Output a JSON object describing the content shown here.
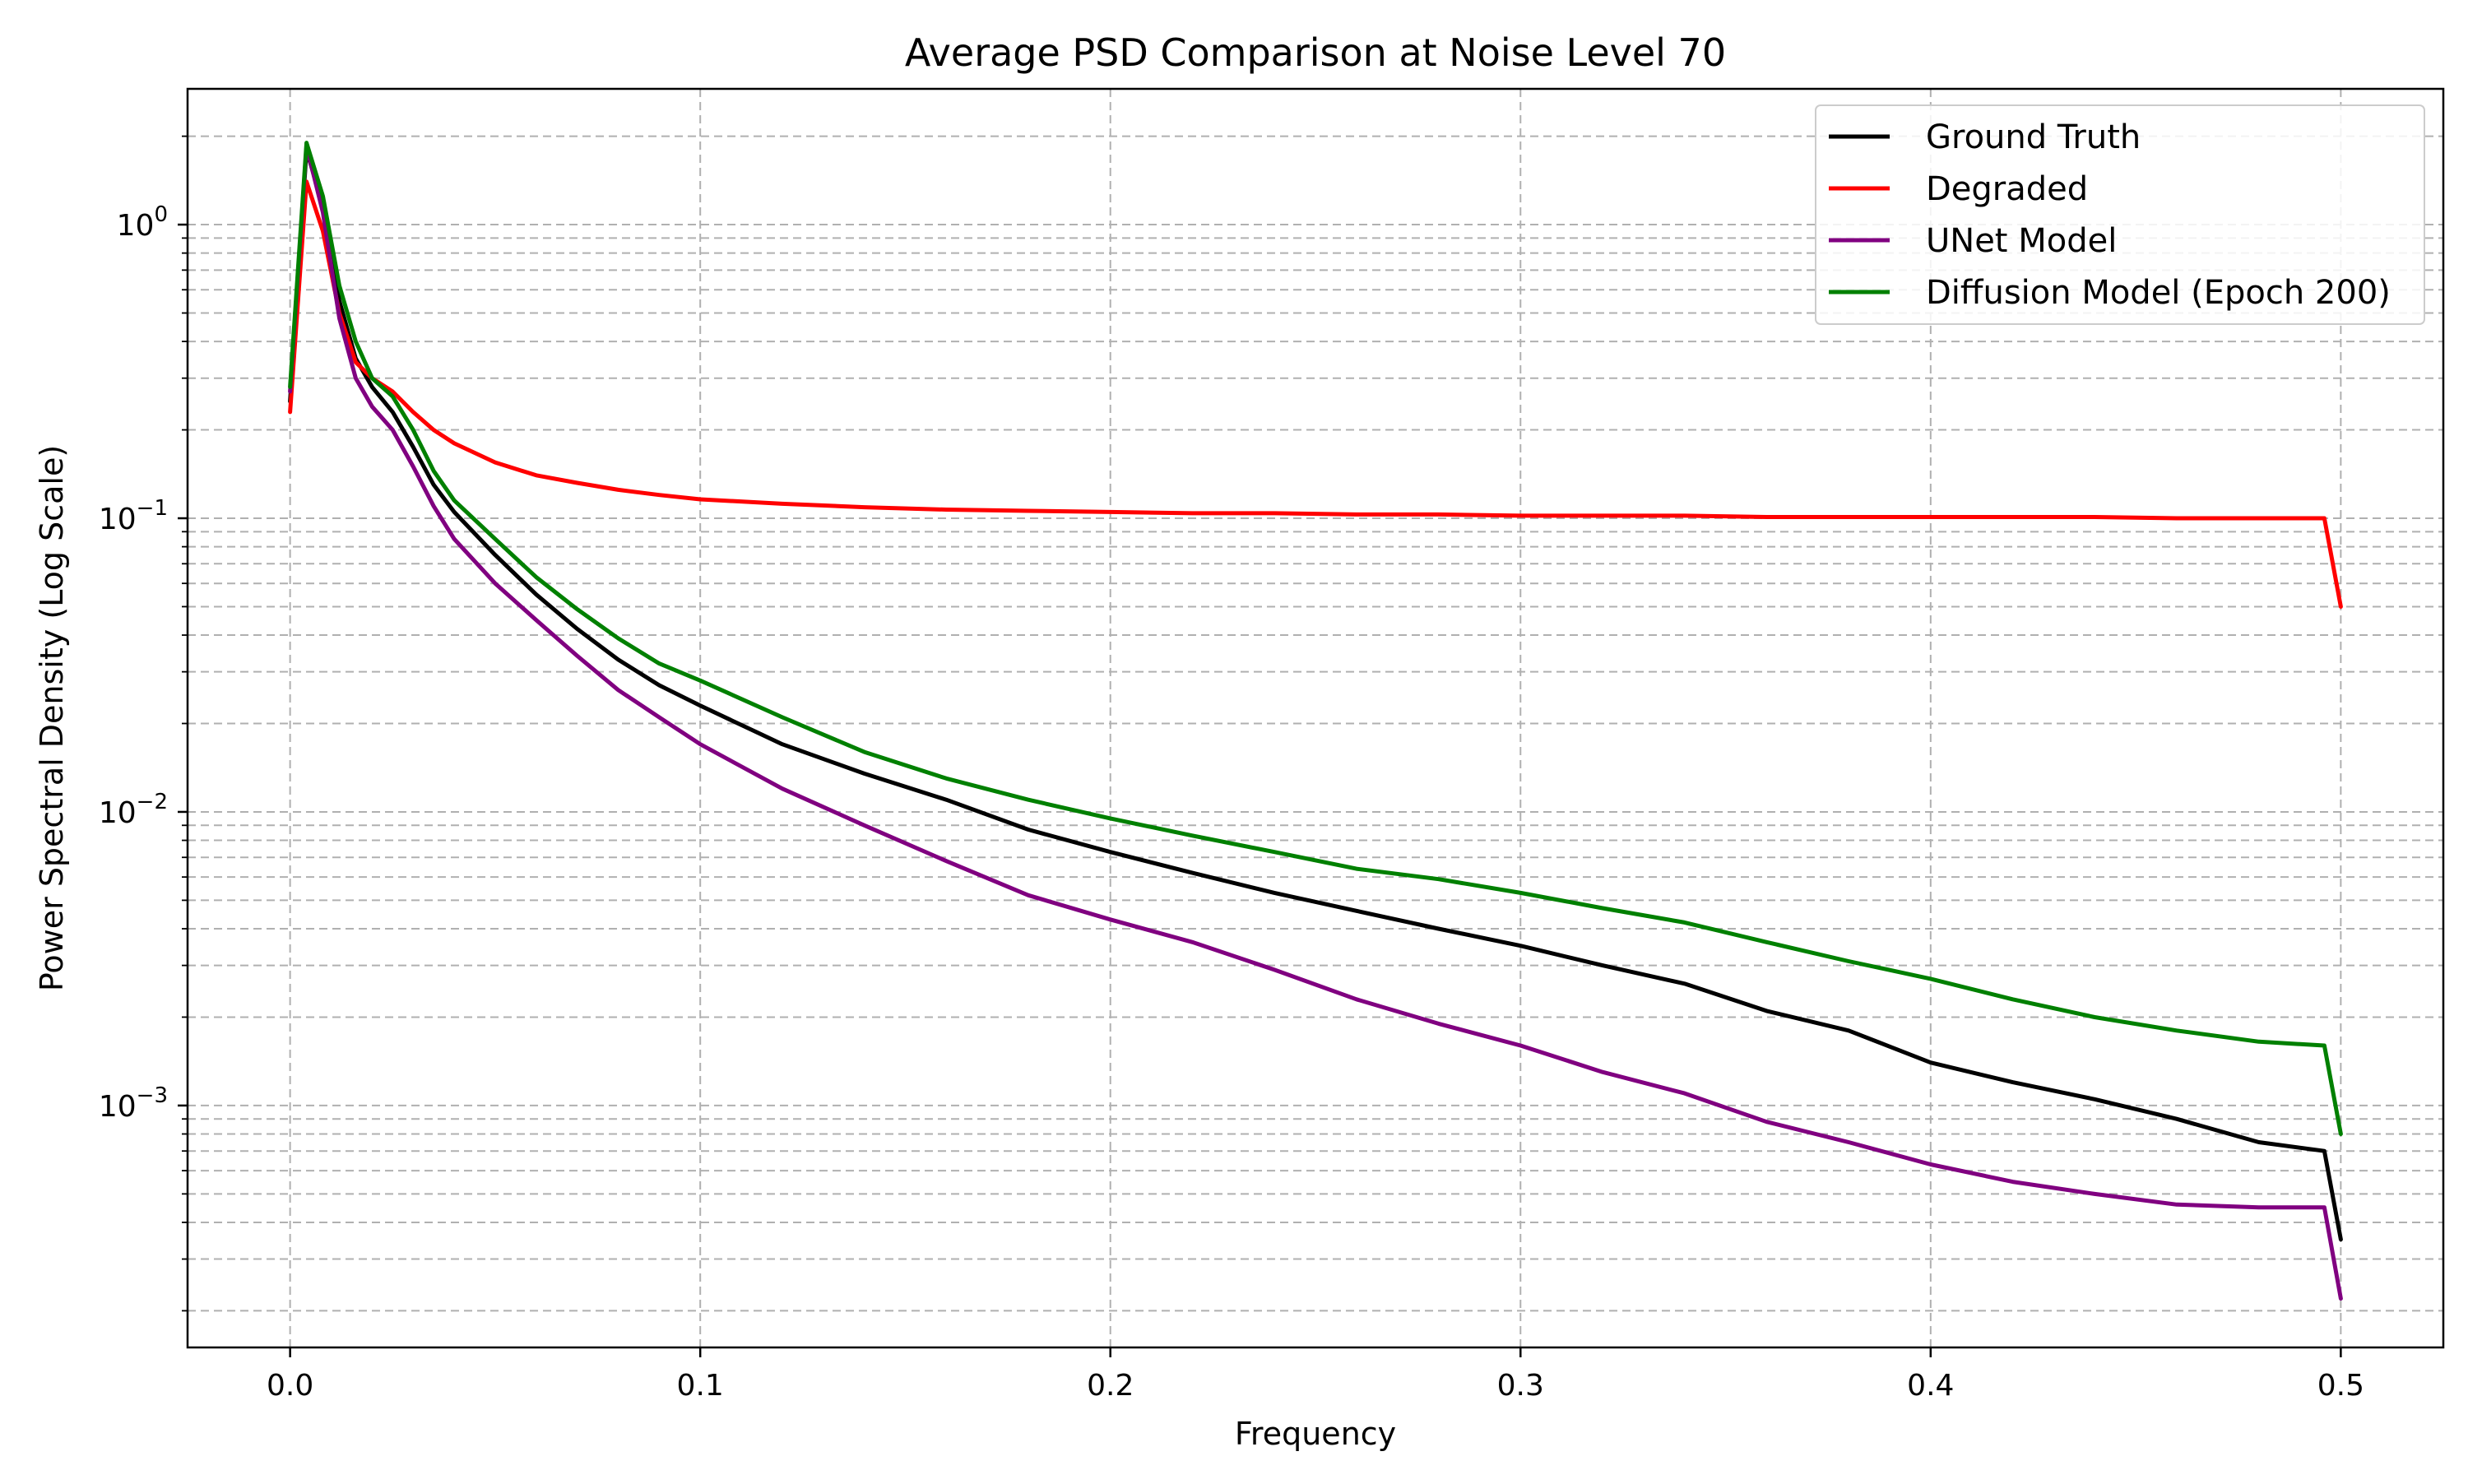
{
  "chart_data": {
    "type": "line",
    "title": "Average PSD Comparison at Noise Level 70",
    "xlabel": "Frequency",
    "ylabel": "Power Spectral Density (Log Scale)",
    "xlim": [
      -0.025,
      0.525
    ],
    "ylim": [
      0.00015,
      2.9
    ],
    "yscale": "log",
    "grid": true,
    "grid_style": "dashed",
    "legend_position": "top-right",
    "x_ticks": [
      0.0,
      0.1,
      0.2,
      0.3,
      0.4,
      0.5
    ],
    "x_tick_labels": [
      "0.0",
      "0.1",
      "0.2",
      "0.3",
      "0.4",
      "0.5"
    ],
    "y_ticks": [
      0.001,
      0.01,
      0.1,
      1
    ],
    "y_tick_labels": [
      {
        "base": "10",
        "exp": "−3"
      },
      {
        "base": "10",
        "exp": "−2"
      },
      {
        "base": "10",
        "exp": "−1"
      },
      {
        "base": "10",
        "exp": "0"
      }
    ],
    "x": [
      0.0,
      0.004,
      0.008,
      0.012,
      0.016,
      0.02,
      0.025,
      0.03,
      0.035,
      0.04,
      0.05,
      0.06,
      0.07,
      0.08,
      0.09,
      0.1,
      0.12,
      0.14,
      0.16,
      0.18,
      0.2,
      0.22,
      0.24,
      0.26,
      0.28,
      0.3,
      0.32,
      0.34,
      0.36,
      0.38,
      0.4,
      0.42,
      0.44,
      0.46,
      0.48,
      0.496,
      0.5
    ],
    "series": [
      {
        "name": "Ground Truth",
        "color": "#000000",
        "values": [
          0.25,
          1.8,
          1.15,
          0.55,
          0.35,
          0.28,
          0.23,
          0.175,
          0.13,
          0.105,
          0.075,
          0.055,
          0.042,
          0.033,
          0.027,
          0.023,
          0.017,
          0.0135,
          0.011,
          0.0087,
          0.0073,
          0.0062,
          0.0053,
          0.0046,
          0.004,
          0.0035,
          0.003,
          0.0026,
          0.0021,
          0.0018,
          0.0014,
          0.0012,
          0.00105,
          0.0009,
          0.00075,
          0.0007,
          0.00035
        ]
      },
      {
        "name": "Degraded",
        "color": "#ff0000",
        "values": [
          0.23,
          1.4,
          0.95,
          0.5,
          0.34,
          0.3,
          0.27,
          0.23,
          0.2,
          0.18,
          0.155,
          0.14,
          0.132,
          0.125,
          0.12,
          0.116,
          0.112,
          0.109,
          0.107,
          0.106,
          0.105,
          0.104,
          0.104,
          0.103,
          0.103,
          0.102,
          0.102,
          0.102,
          0.101,
          0.101,
          0.101,
          0.101,
          0.101,
          0.1,
          0.1,
          0.1,
          0.05
        ]
      },
      {
        "name": "UNet Model",
        "color": "#800080",
        "values": [
          0.27,
          1.85,
          1.1,
          0.48,
          0.3,
          0.24,
          0.2,
          0.15,
          0.11,
          0.085,
          0.06,
          0.045,
          0.034,
          0.026,
          0.021,
          0.017,
          0.012,
          0.009,
          0.0068,
          0.0052,
          0.0043,
          0.0036,
          0.0029,
          0.0023,
          0.0019,
          0.0016,
          0.0013,
          0.0011,
          0.00088,
          0.00075,
          0.00063,
          0.00055,
          0.0005,
          0.00046,
          0.00045,
          0.00045,
          0.00022
        ]
      },
      {
        "name": "Diffusion Model (Epoch 200)",
        "color": "#008000",
        "values": [
          0.28,
          1.9,
          1.25,
          0.62,
          0.4,
          0.3,
          0.26,
          0.2,
          0.145,
          0.115,
          0.085,
          0.063,
          0.049,
          0.039,
          0.032,
          0.028,
          0.021,
          0.016,
          0.013,
          0.011,
          0.0095,
          0.0083,
          0.0073,
          0.0064,
          0.0059,
          0.0053,
          0.0047,
          0.0042,
          0.0036,
          0.0031,
          0.0027,
          0.0023,
          0.002,
          0.0018,
          0.00165,
          0.0016,
          0.0008
        ]
      }
    ]
  }
}
